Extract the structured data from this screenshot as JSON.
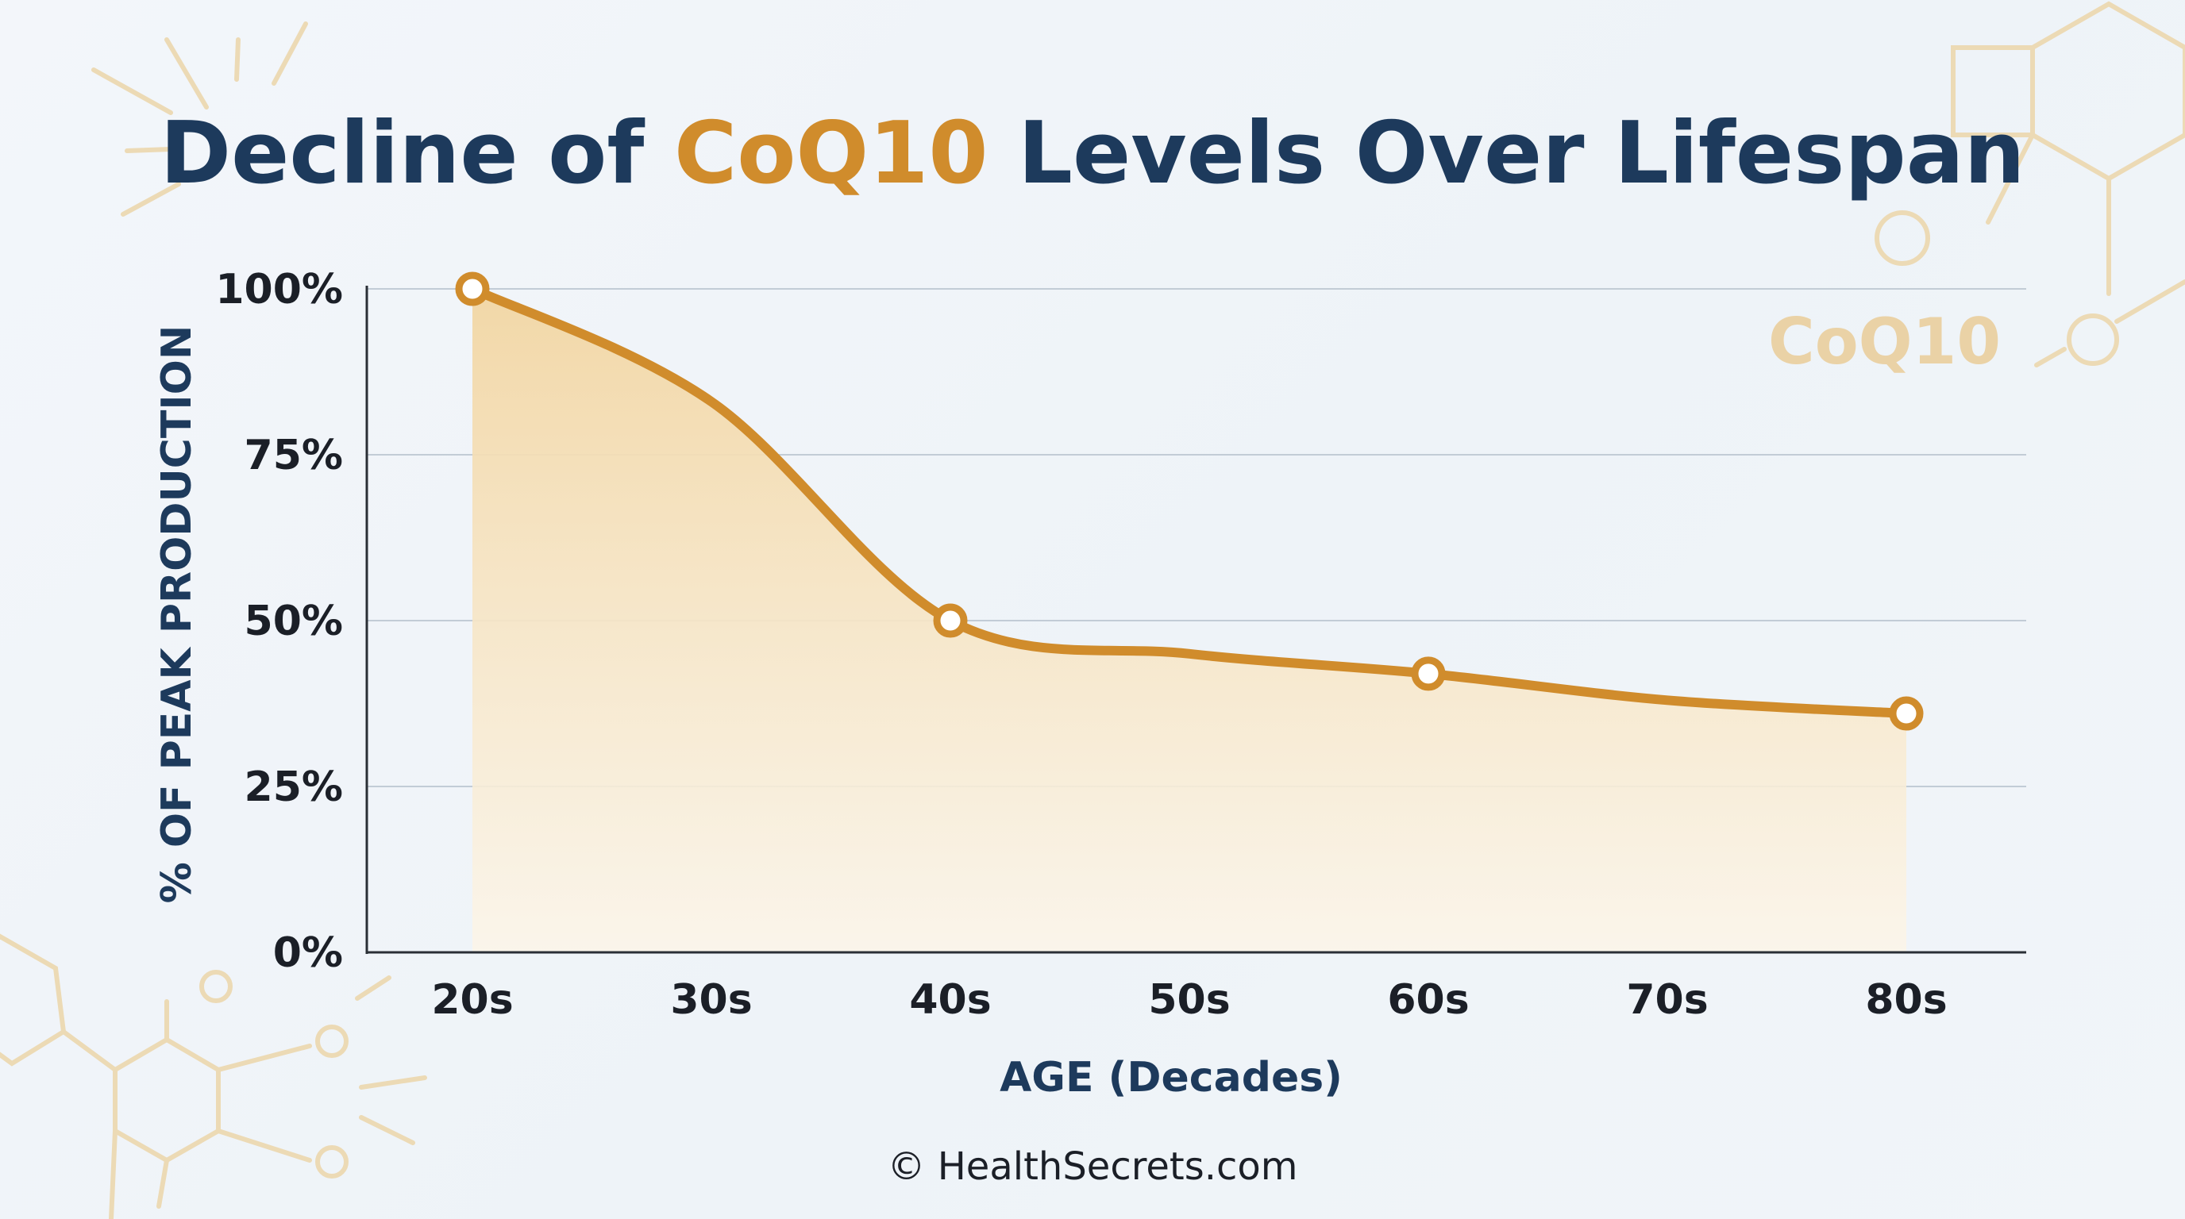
{
  "title": {
    "part1": "Decline of ",
    "accent": "CoQ10",
    "part2": " Levels Over Lifespan"
  },
  "watermark_label": "CoQ10",
  "copyright": "© HealthSecrets.com",
  "colors": {
    "title": "#1d3a5c",
    "accent": "#d08c2c",
    "line": "#d08c2c",
    "fill_top": "#f2d6a3",
    "fill_bottom": "#fcf5e8",
    "grid": "#c2ccd6",
    "axis": "#2a2f36",
    "decoration": "#ecdab5"
  },
  "chart_data": {
    "type": "area",
    "xlabel": "AGE (Decades)",
    "ylabel": "% OF PEAK PRODUCTION",
    "categories": [
      "20s",
      "30s",
      "40s",
      "50s",
      "60s",
      "70s",
      "80s"
    ],
    "yticks": [
      0,
      25,
      50,
      75,
      100
    ],
    "ytick_labels": [
      "0%",
      "25%",
      "50%",
      "75%",
      "100%"
    ],
    "ylim": [
      0,
      100
    ],
    "grid": true,
    "series": [
      {
        "values": [
          100,
          83,
          50,
          45,
          42,
          38,
          36
        ],
        "markers": [
          0,
          2,
          4,
          6
        ]
      }
    ]
  }
}
